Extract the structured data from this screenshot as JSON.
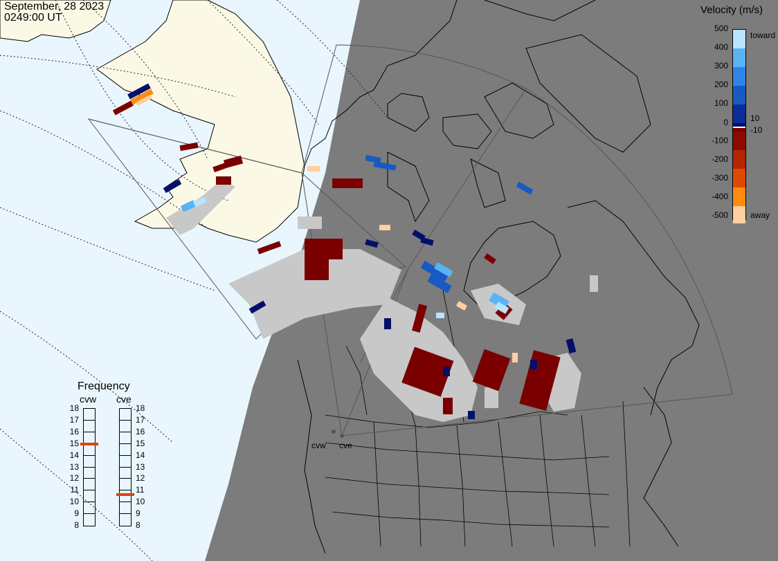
{
  "header": {
    "date": "September, 28 2023",
    "time": "0249:00 UT"
  },
  "velocity_legend": {
    "title": "Velocity (m/s)",
    "ticks": [
      "500",
      "400",
      "300",
      "200",
      "100",
      "10",
      "0",
      "-10",
      "-100",
      "-200",
      "-300",
      "-400",
      "-500"
    ],
    "toward_label": "toward",
    "away_label": "away",
    "colors": [
      "#b9e3ff",
      "#58b4f4",
      "#2b86e6",
      "#185ac4",
      "#0c2c9a",
      "#03106a",
      "#ffffff",
      "#7a0000",
      "#8e0b00",
      "#b52600",
      "#e04a00",
      "#ff8a10",
      "#ffcfa0"
    ]
  },
  "frequency_legend": {
    "title": "Frequency",
    "radars": [
      {
        "name": "cvw",
        "frequency_mhz": 14.9
      },
      {
        "name": "cve",
        "frequency_mhz": 10.6
      }
    ],
    "scale": [
      "18",
      "17",
      "16",
      "15",
      "14",
      "13",
      "12",
      "11",
      "10",
      "9",
      "8"
    ],
    "marker_color": "#dd4411"
  },
  "radar_sites": [
    {
      "name": "cvw"
    },
    {
      "name": "cve"
    }
  ],
  "map_colors": {
    "ocean_day": "#e9f6fe",
    "land_day": "#fbf9e6",
    "night": "#7c7c7c",
    "ground_scatter": "#c8c8c8"
  }
}
